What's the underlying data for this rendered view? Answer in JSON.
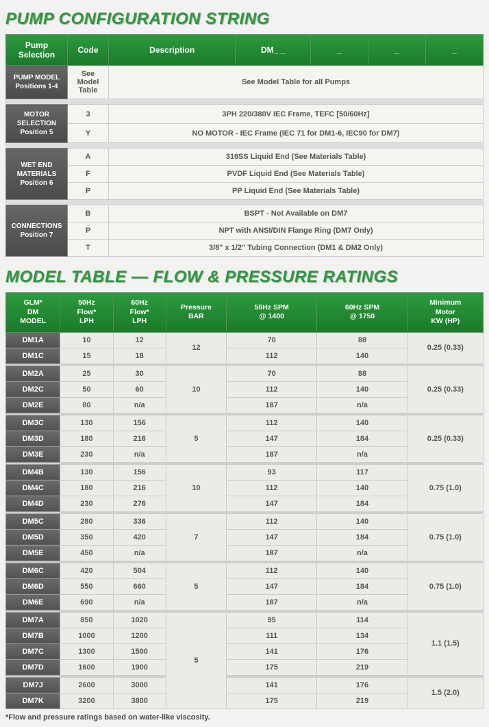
{
  "titles": {
    "config": "PUMP CONFIGURATION STRING",
    "model": "MODEL TABLE — FLOW & PRESSURE RATINGS"
  },
  "title_color": "#2d9a3e",
  "config_header": {
    "c0": "Pump Selection",
    "c1": "Code",
    "c2": "Description",
    "dm": "DM_ _",
    "blank": "_"
  },
  "config_sections": [
    {
      "label": "PUMP MODEL\nPositions 1-4",
      "rows": [
        {
          "code": "See Model Table",
          "desc": "See Model Table for all Pumps"
        }
      ]
    },
    {
      "label": "MOTOR SELECTION\nPosition 5",
      "rows": [
        {
          "code": "3",
          "desc": "3PH 220/380V IEC Frame, TEFC [50/60Hz]"
        },
        {
          "code": "Y",
          "desc": "NO MOTOR - IEC Frame (IEC 71 for DM1-6, IEC90 for DM7)"
        }
      ]
    },
    {
      "label": "WET END MATERIALS\nPosition 6",
      "rows": [
        {
          "code": "A",
          "desc": "316SS Liquid End (See Materials Table)"
        },
        {
          "code": "F",
          "desc": "PVDF Liquid End (See Materials Table)"
        },
        {
          "code": "P",
          "desc": "PP Liquid End (See Materials Table)"
        }
      ]
    },
    {
      "label": "CONNECTIONS\nPosition 7",
      "rows": [
        {
          "code": "B",
          "desc": "BSPT - Not Available on DM7"
        },
        {
          "code": "P",
          "desc": "NPT with ANSI/DIN Flange Ring (DM7 Only)"
        },
        {
          "code": "T",
          "desc": "3/8\" x 1/2\" Tubing Connection (DM1 & DM2 Only)"
        }
      ]
    }
  ],
  "model_header": {
    "c0": "GLM*\nDM\nMODEL",
    "c1": "50Hz\nFlow*\nLPH",
    "c2": "60Hz\nFlow*\nLPH",
    "c3": "Pressure\nBAR",
    "c4": "50Hz SPM\n@ 1400",
    "c5": "60Hz SPM\n@ 1750",
    "c6": "Minimum\nMotor\nKW (HP)"
  },
  "model_groups": [
    {
      "pressure": "12",
      "motor": "0.25 (0.33)",
      "rows": [
        {
          "m": "DM1A",
          "f50": "10",
          "f60": "12",
          "s50": "70",
          "s60": "88"
        },
        {
          "m": "DM1C",
          "f50": "15",
          "f60": "18",
          "s50": "112",
          "s60": "140"
        }
      ]
    },
    {
      "pressure": "10",
      "motor": "0.25 (0.33)",
      "rows": [
        {
          "m": "DM2A",
          "f50": "25",
          "f60": "30",
          "s50": "70",
          "s60": "88"
        },
        {
          "m": "DM2C",
          "f50": "50",
          "f60": "60",
          "s50": "112",
          "s60": "140"
        },
        {
          "m": "DM2E",
          "f50": "80",
          "f60": "n/a",
          "s50": "187",
          "s60": "n/a"
        }
      ]
    },
    {
      "pressure": "5",
      "motor": "0.25 (0.33)",
      "rows": [
        {
          "m": "DM3C",
          "f50": "130",
          "f60": "156",
          "s50": "112",
          "s60": "140"
        },
        {
          "m": "DM3D",
          "f50": "180",
          "f60": "216",
          "s50": "147",
          "s60": "184"
        },
        {
          "m": "DM3E",
          "f50": "230",
          "f60": "n/a",
          "s50": "187",
          "s60": "n/a"
        }
      ]
    },
    {
      "pressure": "10",
      "motor": "0.75 (1.0)",
      "rows": [
        {
          "m": "DM4B",
          "f50": "130",
          "f60": "156",
          "s50": "93",
          "s60": "117"
        },
        {
          "m": "DM4C",
          "f50": "180",
          "f60": "216",
          "s50": "112",
          "s60": "140"
        },
        {
          "m": "DM4D",
          "f50": "230",
          "f60": "276",
          "s50": "147",
          "s60": "184"
        }
      ]
    },
    {
      "pressure": "7",
      "motor": "0.75 (1.0)",
      "rows": [
        {
          "m": "DM5C",
          "f50": "280",
          "f60": "336",
          "s50": "112",
          "s60": "140"
        },
        {
          "m": "DM5D",
          "f50": "350",
          "f60": "420",
          "s50": "147",
          "s60": "184"
        },
        {
          "m": "DM5E",
          "f50": "450",
          "f60": "n/a",
          "s50": "187",
          "s60": "n/a"
        }
      ]
    },
    {
      "pressure": "5",
      "motor": "0.75 (1.0)",
      "rows": [
        {
          "m": "DM6C",
          "f50": "420",
          "f60": "504",
          "s50": "112",
          "s60": "140"
        },
        {
          "m": "DM6D",
          "f50": "550",
          "f60": "660",
          "s50": "147",
          "s60": "184"
        },
        {
          "m": "DM6E",
          "f50": "690",
          "f60": "n/a",
          "s50": "187",
          "s60": "n/a"
        }
      ]
    },
    {
      "pressure": "5",
      "motor": "1.1 (1.5)",
      "motor_span": 4,
      "rows": [
        {
          "m": "DM7A",
          "f50": "850",
          "f60": "1020",
          "s50": "95",
          "s60": "114"
        },
        {
          "m": "DM7B",
          "f50": "1000",
          "f60": "1200",
          "s50": "111",
          "s60": "134"
        },
        {
          "m": "DM7C",
          "f50": "1300",
          "f60": "1500",
          "s50": "141",
          "s60": "176"
        },
        {
          "m": "DM7D",
          "f50": "1600",
          "f60": "1900",
          "s50": "175",
          "s60": "219"
        }
      ]
    },
    {
      "pressure": null,
      "pressure_continue": true,
      "motor": "1.5 (2.0)",
      "rows": [
        {
          "m": "DM7J",
          "f50": "2600",
          "f60": "3000",
          "s50": "141",
          "s60": "176"
        },
        {
          "m": "DM7K",
          "f50": "3200",
          "f60": "3800",
          "s50": "175",
          "s60": "219"
        }
      ]
    }
  ],
  "footnote": "*Flow and pressure ratings based on water-like viscosity.",
  "col_widths": {
    "model": 72,
    "flow": 70,
    "pressure": 80,
    "spm": 120,
    "motor": 100
  }
}
